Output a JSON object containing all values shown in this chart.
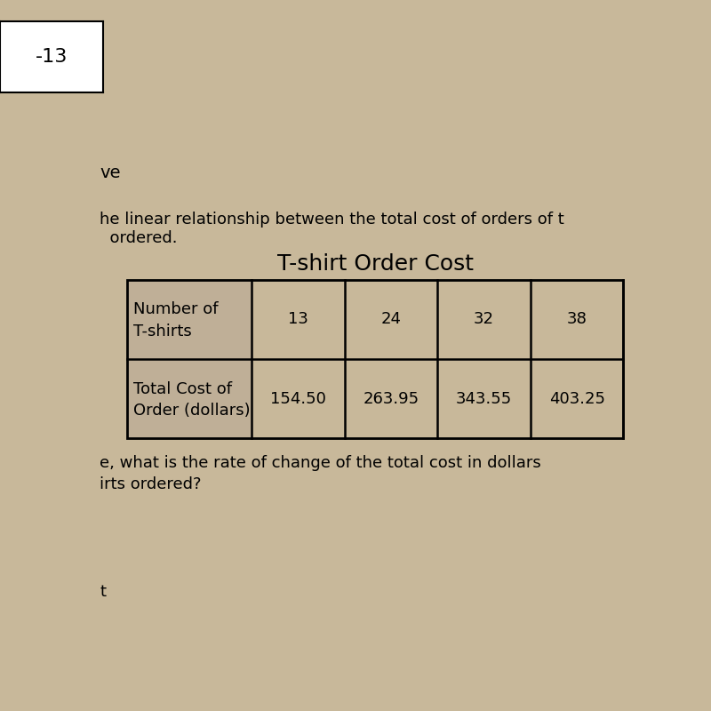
{
  "title": "T-shirt Order Cost",
  "top_left_box_text": "-13",
  "text_ve": "ve",
  "text_paragraph1": "he linear relationship between the total cost of orders of t",
  "text_paragraph2": "  ordered.",
  "row1_label_line1": "Number of",
  "row1_label_line2": "T-shirts",
  "row2_label_line1": "Total Cost of",
  "row2_label_line2": "Order (dollars)",
  "col_values_row1": [
    "13",
    "24",
    "32",
    "38"
  ],
  "col_values_row2": [
    "154.50",
    "263.95",
    "343.55",
    "403.25"
  ],
  "question_line1": "e, what is the rate of change of the total cost in dollars",
  "question_line2": "irts ordered?",
  "footer_text": "t",
  "bg_color": "#c8b89a",
  "label_cell_bg": "#bfaf97",
  "title_fontsize": 18,
  "body_fontsize": 13
}
